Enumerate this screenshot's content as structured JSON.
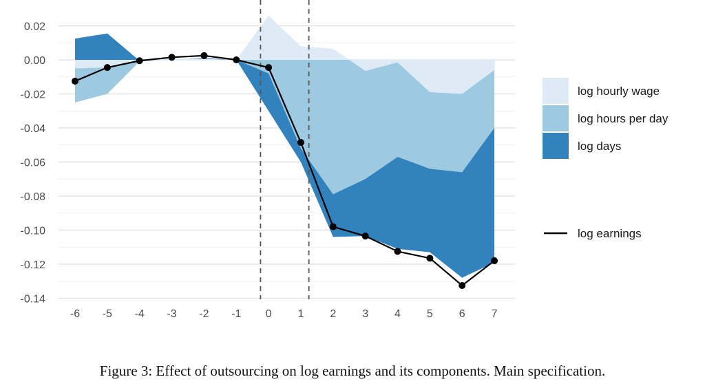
{
  "chart_data": {
    "type": "area",
    "x": [
      -6,
      -5,
      -4,
      -3,
      -2,
      -1,
      0,
      1,
      2,
      3,
      4,
      5,
      6,
      7
    ],
    "xtick_labels": [
      "-6",
      "-5",
      "-4",
      "-3",
      "-2",
      "-1",
      "0",
      "1",
      "2",
      "3",
      "4",
      "5",
      "6",
      "7"
    ],
    "ylim": [
      -0.14,
      0.02
    ],
    "yticks": [
      0.02,
      0.0,
      -0.02,
      -0.04,
      -0.06,
      -0.08,
      -0.1,
      -0.12,
      -0.14
    ],
    "ytick_labels": [
      "0.02",
      "0.00",
      "-0.02",
      "-0.04",
      "-0.06",
      "-0.08",
      "-0.10",
      "-0.12",
      "-0.14"
    ],
    "vertical_dashed_lines_at": [
      -0.25,
      1.25
    ],
    "series": [
      {
        "name": "log days",
        "color": "#3182bd",
        "kind": "area",
        "values": [
          0.0125,
          0.0155,
          -0.0005,
          0.0005,
          0.001,
          0.0,
          -0.03,
          -0.06,
          -0.104,
          -0.1035,
          -0.111,
          -0.113,
          -0.128,
          -0.119
        ]
      },
      {
        "name": "log hours per day",
        "color": "#9ecae1",
        "kind": "area",
        "values": [
          -0.025,
          -0.02,
          -0.001,
          0.0005,
          0.0005,
          0.0,
          -0.008,
          -0.052,
          -0.079,
          -0.07,
          -0.057,
          -0.064,
          -0.066,
          -0.04
        ]
      },
      {
        "name": "log hourly wage",
        "color": "#deebf7",
        "kind": "area",
        "values": [
          -0.005,
          -0.0045,
          -0.0005,
          0.001,
          0.0005,
          0.0,
          0.026,
          0.008,
          0.0065,
          -0.0065,
          -0.0015,
          -0.019,
          -0.02,
          -0.006
        ]
      },
      {
        "name": "log earnings",
        "color": "#000000",
        "kind": "line",
        "values": [
          -0.0125,
          -0.0045,
          -0.0005,
          0.0015,
          0.0025,
          0.0,
          -0.0045,
          -0.0485,
          -0.098,
          -0.1035,
          -0.1125,
          -0.1165,
          -0.1325,
          -0.118
        ]
      }
    ],
    "legend": [
      {
        "label": "log hourly wage",
        "color": "#deebf7",
        "kind": "area"
      },
      {
        "label": "log hours per day",
        "color": "#9ecae1",
        "kind": "area"
      },
      {
        "label": "log days",
        "color": "#3182bd",
        "kind": "area"
      },
      {
        "label": "log earnings",
        "color": "#000000",
        "kind": "line"
      }
    ],
    "legend_position": "right",
    "grid": true
  },
  "caption": "Figure 3: Effect of outsourcing on log earnings and its components. Main specification."
}
